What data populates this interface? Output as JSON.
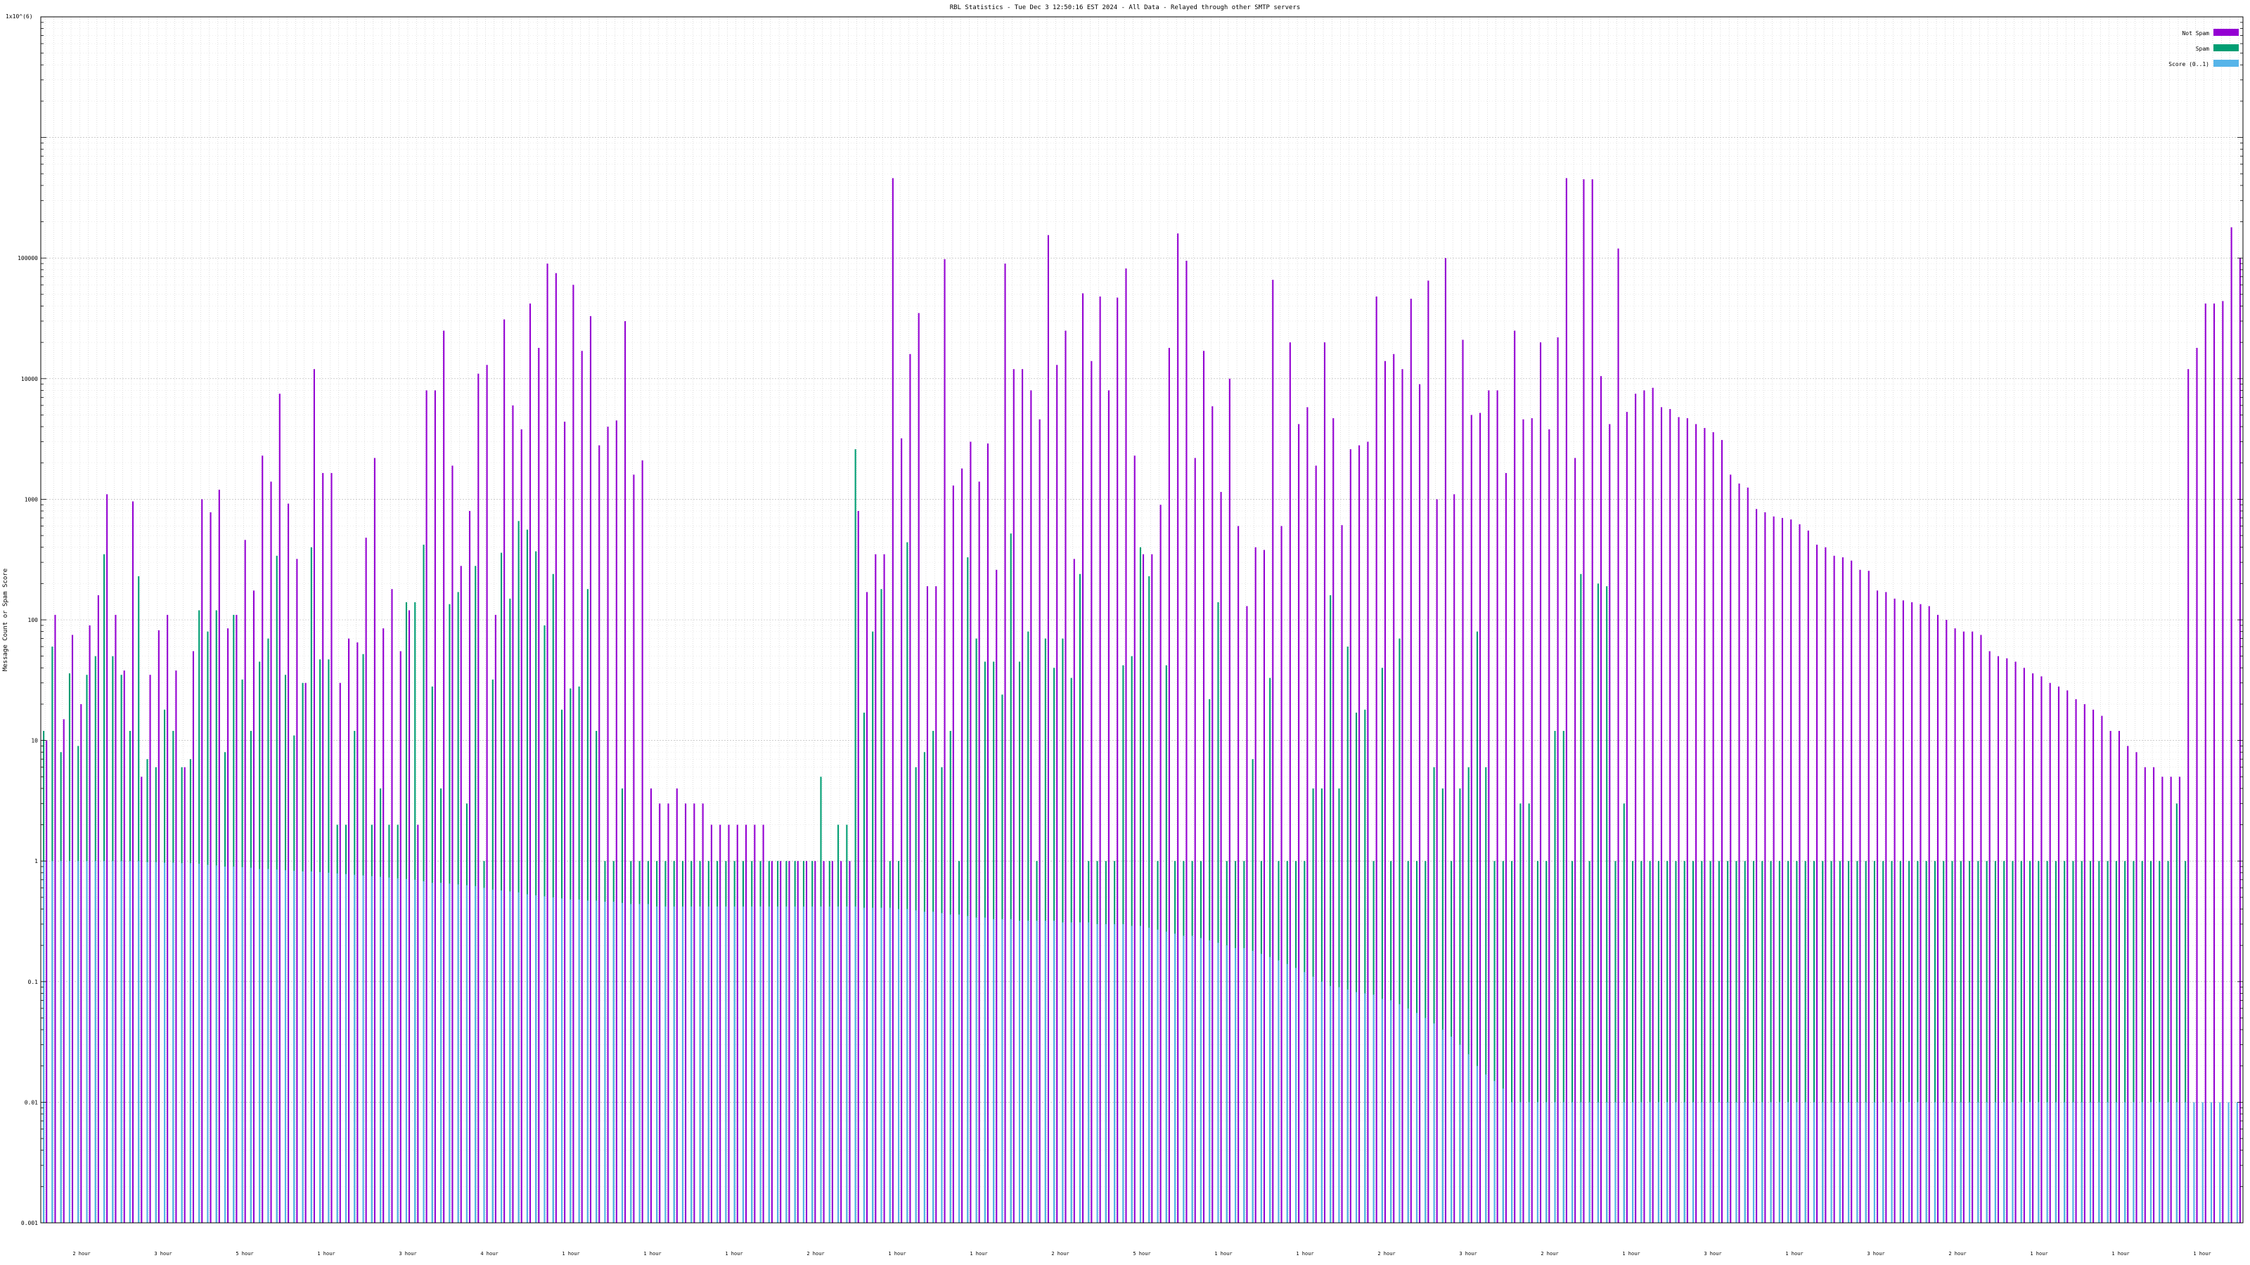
{
  "chart_data": {
    "type": "bar",
    "title": "RBL Statistics - Tue Dec  3 12:50:16 EST 2024 - All Data - Relayed through other SMTP servers",
    "xlabel": "",
    "ylabel": "Message Count or Spam Score",
    "y_scale": "log",
    "ylim": [
      0.001,
      10000000
    ],
    "y_top_label": "1x10^(6)",
    "y_ticks": [
      {
        "value": 0.001,
        "label": "0.001"
      },
      {
        "value": 0.01,
        "label": "0.01"
      },
      {
        "value": 0.1,
        "label": "0.1"
      },
      {
        "value": 1,
        "label": "1"
      },
      {
        "value": 10,
        "label": "10"
      },
      {
        "value": 100,
        "label": "100"
      },
      {
        "value": 1000,
        "label": "1000"
      },
      {
        "value": 10000,
        "label": "10000"
      },
      {
        "value": 100000,
        "label": "100000"
      }
    ],
    "grid": true,
    "legend_position": "top-right",
    "series": [
      {
        "name": "Not Spam",
        "color": "#9400d3",
        "values": [
          10,
          110,
          15,
          75,
          20,
          90,
          160,
          1100,
          110,
          38,
          960,
          5,
          35,
          82,
          110,
          38,
          6,
          55,
          1000,
          780,
          1200,
          85,
          110,
          460,
          175,
          2300,
          1400,
          7500,
          920,
          320,
          30,
          12000,
          1650,
          1650,
          30,
          70,
          65,
          480,
          2200,
          85,
          180,
          55,
          120,
          2,
          8000,
          8000,
          25000,
          1900,
          280,
          800,
          11000,
          13000,
          110,
          31000,
          6000,
          3800,
          42000,
          18000,
          90000,
          75000,
          4400,
          60000,
          17000,
          33000,
          2800,
          4000,
          4500,
          30000,
          1600,
          2100,
          4,
          3,
          3,
          4,
          3,
          3,
          3,
          2,
          2,
          2,
          2,
          2,
          2,
          2,
          1,
          1,
          1,
          1,
          1,
          1,
          1,
          1,
          1,
          1,
          800,
          170,
          350,
          350,
          460000,
          3200,
          16000,
          35000,
          190,
          190,
          98000,
          1300,
          1800,
          3000,
          1400,
          2900,
          260,
          90000,
          12000,
          12000,
          8000,
          4600,
          155000,
          13000,
          25000,
          320,
          51000,
          14000,
          48000,
          8000,
          47000,
          82000,
          2300,
          350,
          350,
          900,
          18000,
          160000,
          95000,
          2200,
          17000,
          5900,
          1150,
          10000,
          600,
          130,
          400,
          380,
          66000,
          600,
          20000,
          4200,
          5800,
          1900,
          20000,
          4700,
          610,
          2600,
          2800,
          3000,
          48000,
          14000,
          16000,
          12000,
          46000,
          9000,
          65000,
          1000,
          100000,
          1100,
          21000,
          5000,
          5200,
          8000,
          8000,
          1650,
          25000,
          4600,
          4700,
          20000,
          3800,
          22000,
          460000,
          2200,
          450000,
          450000,
          10500,
          4200,
          120000,
          5300,
          7500,
          8000,
          8400,
          5800,
          5600,
          4800,
          4700,
          4200,
          3900,
          3600,
          3100,
          1600,
          1350,
          1250,
          830,
          780,
          720,
          700,
          680,
          620,
          550,
          420,
          400,
          340,
          330,
          310,
          260,
          255,
          175,
          170,
          150,
          145,
          140,
          135,
          130,
          110,
          100,
          85,
          80,
          80,
          75,
          55,
          50,
          48,
          45,
          40,
          36,
          34,
          30,
          28,
          26,
          22,
          20,
          18,
          16,
          12,
          12,
          9,
          8,
          6,
          6,
          5,
          5,
          5,
          12000,
          18000,
          42000,
          42000,
          44000,
          180000,
          100000
        ]
      },
      {
        "name": "Spam",
        "color": "#009e73",
        "values": [
          12,
          60,
          8,
          36,
          9,
          35,
          50,
          350,
          50,
          35,
          12,
          230,
          7,
          6,
          18,
          12,
          6,
          7,
          120,
          80,
          120,
          8,
          110,
          32,
          12,
          45,
          70,
          340,
          35,
          11,
          30,
          400,
          47,
          47,
          2,
          2,
          12,
          52,
          2,
          4,
          2,
          2,
          140,
          140,
          420,
          28,
          4,
          135,
          170,
          3,
          280,
          1,
          32,
          360,
          150,
          660,
          560,
          370,
          90,
          240,
          18,
          27,
          28,
          180,
          12,
          1,
          1,
          4,
          1,
          1,
          1,
          1,
          1,
          1,
          1,
          1,
          1,
          1,
          1,
          1,
          1,
          1,
          1,
          1,
          1,
          1,
          1,
          1,
          1,
          1,
          5,
          1,
          2,
          2,
          2600,
          17,
          80,
          180,
          1,
          1,
          440,
          6,
          8,
          12,
          6,
          12,
          1,
          330,
          70,
          45,
          45,
          24,
          520,
          45,
          80,
          1,
          70,
          40,
          70,
          33,
          240,
          1,
          1,
          1,
          1,
          42,
          50,
          400,
          230,
          1,
          42,
          1,
          1,
          1,
          1,
          22,
          140,
          1,
          1,
          1,
          7,
          1,
          33,
          1,
          1,
          1,
          1,
          4,
          4,
          160,
          4,
          60,
          17,
          18,
          1,
          40,
          1,
          70,
          1,
          1,
          1,
          6,
          4,
          1,
          4,
          6,
          80,
          6,
          1,
          1,
          1,
          3,
          3,
          1,
          1,
          12,
          12,
          1,
          240,
          1,
          200,
          190,
          1,
          3,
          1,
          1,
          1,
          1,
          1,
          1,
          1,
          1,
          1,
          1,
          1,
          1,
          1,
          1,
          1,
          1,
          1,
          1,
          1,
          1,
          1,
          1,
          1,
          1,
          1,
          1,
          1,
          1,
          1,
          1,
          1,
          1,
          1,
          1,
          1,
          1,
          1,
          1,
          1,
          1,
          1,
          1,
          1,
          1,
          1,
          1,
          1,
          1,
          1,
          1,
          1,
          1,
          1,
          1,
          1,
          1,
          1,
          1,
          1,
          1,
          1,
          1,
          1,
          3,
          1
        ]
      },
      {
        "name": "Score (0..1)",
        "color": "#56b4e9",
        "values": [
          1,
          1,
          1,
          1,
          1,
          1,
          1,
          1,
          1,
          1,
          1,
          1,
          0.98,
          0.98,
          0.97,
          0.97,
          0.96,
          0.96,
          0.95,
          0.93,
          0.92,
          0.9,
          0.9,
          0.89,
          0.88,
          0.86,
          0.86,
          0.85,
          0.84,
          0.83,
          0.82,
          0.82,
          0.81,
          0.8,
          0.79,
          0.78,
          0.77,
          0.76,
          0.75,
          0.74,
          0.73,
          0.72,
          0.71,
          0.7,
          0.68,
          0.66,
          0.66,
          0.65,
          0.64,
          0.63,
          0.62,
          0.6,
          0.58,
          0.57,
          0.56,
          0.55,
          0.53,
          0.52,
          0.51,
          0.5,
          0.49,
          0.48,
          0.48,
          0.47,
          0.47,
          0.46,
          0.46,
          0.45,
          0.44,
          0.44,
          0.44,
          0.42,
          0.42,
          0.42,
          0.42,
          0.42,
          0.42,
          0.42,
          0.42,
          0.42,
          0.42,
          0.42,
          0.42,
          0.42,
          0.42,
          0.42,
          0.42,
          0.42,
          0.42,
          0.42,
          0.42,
          0.42,
          0.42,
          0.42,
          0.42,
          0.41,
          0.41,
          0.41,
          0.41,
          0.4,
          0.4,
          0.39,
          0.38,
          0.38,
          0.37,
          0.36,
          0.36,
          0.35,
          0.34,
          0.34,
          0.33,
          0.33,
          0.33,
          0.32,
          0.32,
          0.32,
          0.32,
          0.32,
          0.31,
          0.31,
          0.31,
          0.31,
          0.3,
          0.3,
          0.3,
          0.3,
          0.29,
          0.29,
          0.28,
          0.27,
          0.26,
          0.25,
          0.24,
          0.24,
          0.23,
          0.22,
          0.21,
          0.2,
          0.19,
          0.19,
          0.18,
          0.17,
          0.16,
          0.15,
          0.14,
          0.13,
          0.12,
          0.11,
          0.1,
          0.092,
          0.09,
          0.086,
          0.082,
          0.08,
          0.078,
          0.072,
          0.07,
          0.065,
          0.06,
          0.055,
          0.05,
          0.045,
          0.04,
          0.035,
          0.03,
          0.025,
          0.02,
          0.017,
          0.015,
          0.013,
          0.01,
          0.01,
          0.01,
          0.01,
          0.01,
          0.01,
          0.01,
          0.01,
          0.01,
          0.01,
          0.01,
          0.01,
          0.01,
          0.01,
          0.01,
          0.01,
          0.01,
          0.01,
          0.01,
          0.01,
          0.01,
          0.01,
          0.01,
          0.01,
          0.01,
          0.01,
          0.01,
          0.01,
          0.01,
          0.01,
          0.01,
          0.01,
          0.01,
          0.01,
          0.01,
          0.01,
          0.01,
          0.01,
          0.01,
          0.01,
          0.01,
          0.01,
          0.01,
          0.01,
          0.01,
          0.01,
          0.01,
          0.01,
          0.01,
          0.01,
          0.01,
          0.01,
          0.01,
          0.01,
          0.01,
          0.01,
          0.01,
          0.01,
          0.01,
          0.01,
          0.01,
          0.01,
          0.01,
          0.01,
          0.01,
          0.01,
          0.01,
          0.01,
          0.01,
          0.01,
          0.01,
          0.01,
          0.01,
          0.01,
          0.01,
          0.01,
          0.01,
          0.01,
          0.01,
          0.01,
          0.01,
          0.01,
          0.01,
          0.01,
          0.01,
          0.01,
          0.01,
          0.01,
          0.01,
          0.01,
          0.01,
          0.01,
          0.01,
          0.01,
          0.01,
          0.01,
          0.01,
          0.01,
          0.01,
          0.01,
          0.01,
          0.01,
          0.01,
          0.01,
          0.01,
          0.01,
          0.01,
          0.01,
          0.008,
          0.003,
          0.002,
          0.002
        ]
      }
    ],
    "x_category_labels": [
      "2 hour",
      "3 hour",
      "5 hour",
      "1 hour",
      "3 hour",
      "4 hour",
      "1 hour",
      "1 hour",
      "1 hour",
      "2 hour",
      "1 hour",
      "1 hour",
      "2 hour",
      "5 hour",
      "1 hour",
      "1 hour",
      "2 hour",
      "3 hour",
      "2 hour",
      "1 hour",
      "3 hour",
      "1 hour",
      "3 hour",
      "2 hour",
      "1 hour",
      "1 hour",
      "1 hour"
    ]
  }
}
